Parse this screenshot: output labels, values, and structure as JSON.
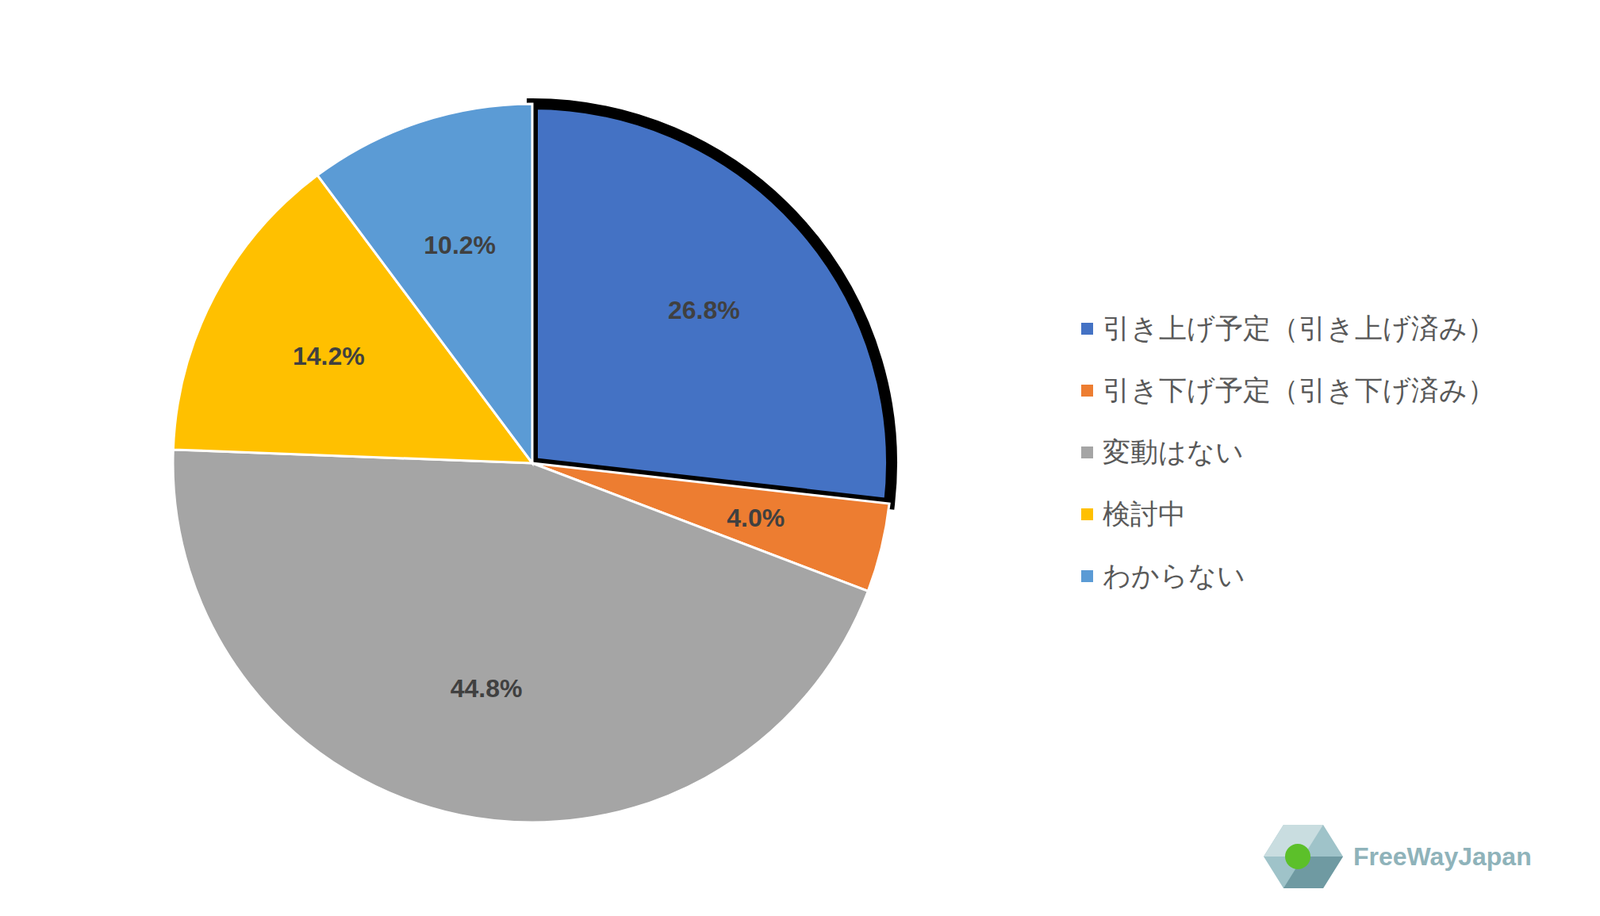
{
  "chart_data": {
    "type": "pie",
    "categories": [
      "引き上げ予定（引き上げ済み）",
      "引き下げ予定（引き下げ済み）",
      "変動はない",
      "検討中",
      "わからない"
    ],
    "values": [
      26.8,
      4.0,
      44.8,
      14.2,
      10.2
    ],
    "value_labels": [
      "26.8%",
      "4.0%",
      "44.8%",
      "14.2%",
      "10.2%"
    ],
    "colors": [
      "#4472C4",
      "#ED7D31",
      "#A5A5A5",
      "#FFC000",
      "#5B9BD5"
    ],
    "data_labels": true,
    "legend": "right",
    "annotations": [
      "FreeWayJapan"
    ]
  }
}
